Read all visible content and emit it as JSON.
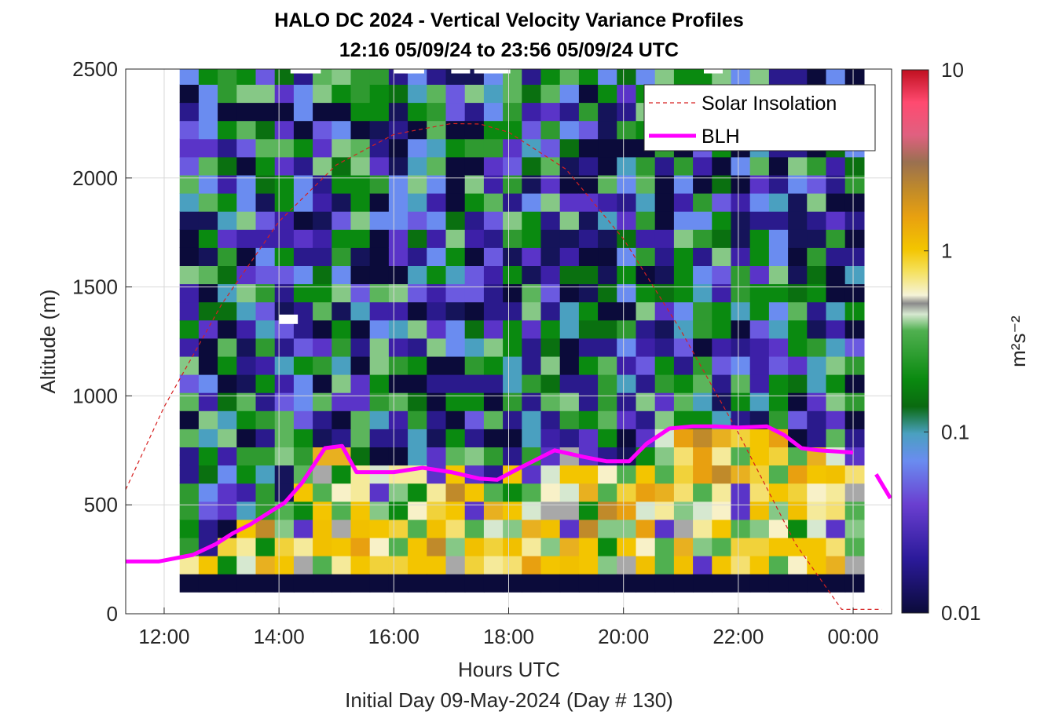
{
  "chart_data": {
    "type": "heatmap",
    "title": "HALO DC 2024 - Vertical Velocity Variance Profiles",
    "subtitle": "12:16 05/09/24 to 23:56 05/09/24  UTC",
    "xlabel": "Hours UTC",
    "xlabel2": "Initial Day 09-May-2024 (Day # 130)",
    "ylabel": "Altitude (m)",
    "colorbar_label": "m²s⁻²",
    "xlim_hours": [
      11.33,
      24.67
    ],
    "ylim": [
      0,
      2500
    ],
    "x_ticks": [
      {
        "value": 12,
        "label": "12:00"
      },
      {
        "value": 14,
        "label": "14:00"
      },
      {
        "value": 16,
        "label": "16:00"
      },
      {
        "value": 18,
        "label": "18:00"
      },
      {
        "value": 20,
        "label": "20:00"
      },
      {
        "value": 22,
        "label": "22:00"
      },
      {
        "value": 24,
        "label": "00:00"
      }
    ],
    "y_ticks": [
      {
        "value": 0,
        "label": "0"
      },
      {
        "value": 500,
        "label": "500"
      },
      {
        "value": 1000,
        "label": "1000"
      },
      {
        "value": 1500,
        "label": "1500"
      },
      {
        "value": 2000,
        "label": "2000"
      },
      {
        "value": 2500,
        "label": "2500"
      }
    ],
    "colorbar": {
      "scale": "log",
      "range": [
        0.01,
        10
      ],
      "ticks": [
        {
          "value": 0.01,
          "label": "0.01"
        },
        {
          "value": 0.1,
          "label": "0.1"
        },
        {
          "value": 1,
          "label": "1"
        },
        {
          "value": 10,
          "label": "10"
        }
      ]
    },
    "grid": true,
    "legend_position": "top-right",
    "heatmap": {
      "start_hour": 12.27,
      "end_hour": 23.93,
      "bottom_altitude": 100,
      "top_altitude": 2500,
      "near_ground_band_altitude": [
        100,
        150
      ],
      "description_levels": {
        "below_BLH": "approximately 0.3 to 1 m2 s-2",
        "above_BLH": "approximately 0.01 to 0.1 m2 s-2"
      }
    },
    "series": [
      {
        "name": "Solar Insolation",
        "style": "dashed",
        "color": "#d62020",
        "x": [
          11.33,
          12.0,
          13.0,
          14.0,
          15.0,
          16.0,
          17.0,
          17.5,
          18.0,
          19.0,
          20.0,
          21.0,
          22.0,
          23.0,
          23.8,
          24.0,
          24.5
        ],
        "y": [
          570,
          950,
          1420,
          1800,
          2060,
          2200,
          2250,
          2248,
          2210,
          2040,
          1720,
          1300,
          830,
          320,
          20,
          20,
          20
        ]
      },
      {
        "name": "BLH",
        "style": "solid",
        "color": "#ff00ff",
        "x": [
          11.33,
          11.9,
          12.5,
          12.9,
          13.2,
          13.5,
          13.8,
          14.1,
          14.4,
          14.8,
          15.1,
          15.35,
          15.6,
          16.0,
          16.5,
          17.0,
          17.5,
          17.8,
          18.2,
          18.8,
          19.3,
          19.7,
          20.1,
          20.4,
          20.8,
          21.2,
          21.6,
          22.0,
          22.5,
          22.8,
          23.1,
          23.4,
          24.0
        ],
        "y": [
          240,
          240,
          270,
          320,
          370,
          410,
          460,
          510,
          600,
          760,
          770,
          650,
          650,
          650,
          670,
          650,
          620,
          615,
          670,
          750,
          720,
          700,
          700,
          780,
          850,
          860,
          860,
          855,
          860,
          820,
          760,
          750,
          740
        ]
      },
      {
        "name": "BLH (segment 2)",
        "style": "solid",
        "color": "#ff00ff",
        "x": [
          24.4,
          24.65
        ],
        "y": [
          640,
          530
        ]
      }
    ]
  },
  "legend": {
    "items": [
      {
        "label": "Solar Insolation",
        "color": "#d62020",
        "style": "dashed"
      },
      {
        "label": "BLH",
        "color": "#ff00ff",
        "style": "solid"
      }
    ]
  }
}
